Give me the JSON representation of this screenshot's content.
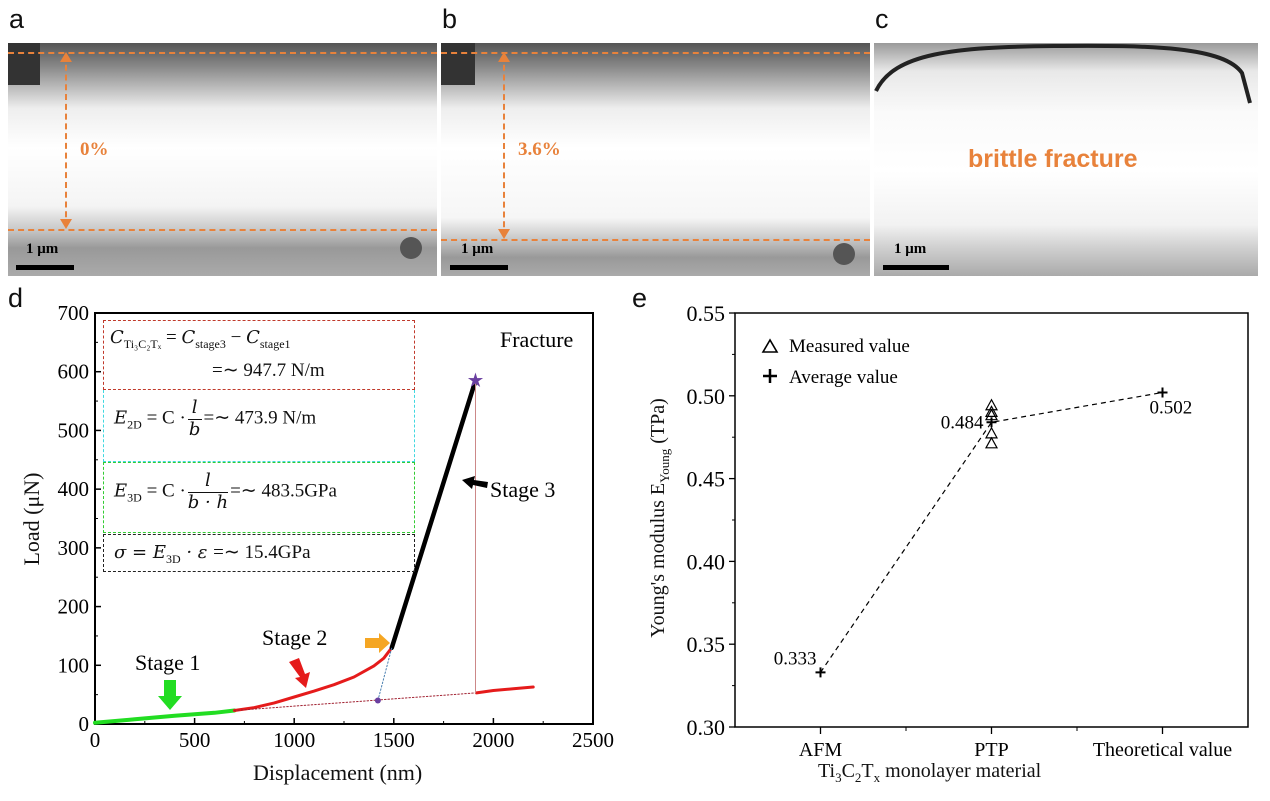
{
  "panels": {
    "a": {
      "label": "a",
      "strain": "0%",
      "scale_bar": "1 μm"
    },
    "b": {
      "label": "b",
      "strain": "3.6%",
      "scale_bar": "1 μm"
    },
    "c": {
      "label": "c",
      "annotation": "brittle fracture",
      "scale_bar": "1 μm"
    },
    "d": {
      "label": "d"
    },
    "e": {
      "label": "e"
    }
  },
  "equations": {
    "eq1": {
      "lhs": "C",
      "lhs_sub": "Ti₃C₂Tₓ",
      "eq": " = ",
      "t1": "C",
      "t1_sub": "stage3",
      "minus": " − ",
      "t2": "C",
      "t2_sub": "stage1",
      "result": "=∼ 947.7 N/m"
    },
    "eq2": {
      "lhs": "E",
      "lhs_sub": "2D",
      "mid": " = C ·",
      "num": "l",
      "den": "b",
      "result": "=∼ 473.9 N/m"
    },
    "eq3": {
      "lhs": "E",
      "lhs_sub": "3D",
      "mid": " = C ·",
      "num": "l",
      "den": "b · h",
      "result": "=∼ 483.5GPa"
    },
    "eq4": {
      "lhs": "σ = E",
      "lhs_sub": "3D",
      "mid": " · ε ",
      "result": "=∼ 15.4GPa"
    }
  },
  "colors": {
    "strain_marker": "#e8823b",
    "stage1": "#22dd22",
    "stage2": "#e51b1b",
    "stage3": "#000000",
    "fracture_star": "#6a3fa0",
    "tangent": "#4a7fb0",
    "stage2_arrow": "#e51b1b",
    "onset_arrow": "#f5a623",
    "eq1_border": "#c0392b",
    "eq2_border": "#40d8e0",
    "eq3_border": "#33cc33",
    "eq4_border": "#222222"
  },
  "chart_data": [
    {
      "type": "line",
      "panel": "d",
      "xlabel": "Displacement (nm)",
      "ylabel": "Load (μN)",
      "xlim": [
        0,
        2500
      ],
      "ylim": [
        0,
        700
      ],
      "xticks": [
        0,
        500,
        1000,
        1500,
        2000,
        2500
      ],
      "yticks": [
        0,
        100,
        200,
        300,
        400,
        500,
        600,
        700
      ],
      "grid": false,
      "series": [
        {
          "key": "stage1",
          "x": [
            0,
            200,
            400,
            600,
            700
          ],
          "y": [
            2,
            8,
            14,
            19,
            23
          ]
        },
        {
          "key": "stage2",
          "x": [
            700,
            800,
            900,
            1000,
            1100,
            1200,
            1300,
            1400,
            1450,
            1490
          ],
          "y": [
            23,
            28,
            36,
            46,
            56,
            67,
            80,
            99,
            112,
            130
          ]
        },
        {
          "key": "stage3",
          "x": [
            1490,
            1910
          ],
          "y": [
            130,
            585
          ]
        },
        {
          "key": "post_fracture",
          "x": [
            1915,
            2000,
            2100,
            2200
          ],
          "y": [
            53,
            57,
            60,
            63
          ]
        },
        {
          "key": "baseline_dotted",
          "x": [
            700,
            1910
          ],
          "y": [
            23,
            53
          ]
        },
        {
          "key": "tangent_dotted",
          "x": [
            1420,
            1490
          ],
          "y": [
            40,
            130
          ]
        },
        {
          "key": "fracture_drop",
          "x": [
            1910,
            1910
          ],
          "y": [
            585,
            53
          ]
        }
      ],
      "points": {
        "fracture": [
          1910,
          585
        ],
        "intersection": [
          1420,
          40
        ]
      },
      "annotations": {
        "fracture": "Fracture",
        "stage1": "Stage 1",
        "stage2": "Stage 2",
        "stage3": "Stage 3"
      }
    },
    {
      "type": "scatter",
      "panel": "e",
      "xlabel_main": "Ti",
      "xlabel_parts": [
        "Ti",
        "3",
        "C",
        "2",
        "T",
        "x",
        " monolayer material"
      ],
      "ylabel_parts": [
        "Young's modulus E",
        "Young",
        " (TPa)"
      ],
      "categories": [
        "AFM",
        "PTP",
        "Theoretical value"
      ],
      "ylim": [
        0.3,
        0.55
      ],
      "yticks": [
        "0.30",
        "0.35",
        "0.40",
        "0.45",
        "0.50",
        "0.55"
      ],
      "grid": false,
      "legend": {
        "position": "top-left",
        "items": [
          "Measured value",
          "Average value"
        ]
      },
      "measured": {
        "category": "PTP",
        "values": [
          0.494,
          0.49,
          0.488,
          0.477,
          0.471
        ]
      },
      "average": {
        "values": [
          0.333,
          0.484,
          0.502
        ],
        "labels": [
          "0.333",
          "0.484",
          "0.502"
        ]
      }
    }
  ]
}
